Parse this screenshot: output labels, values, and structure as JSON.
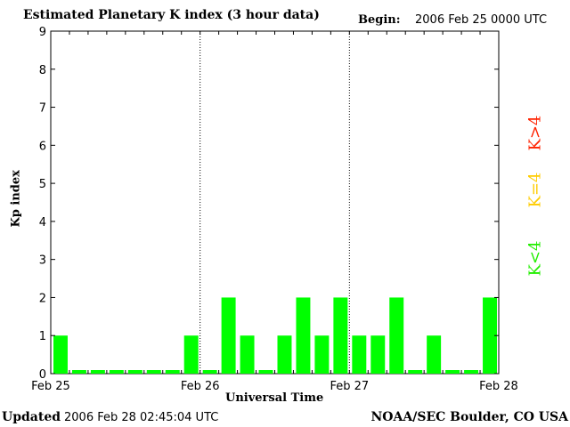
{
  "header": {
    "title": "Estimated Planetary K index (3 hour data)",
    "begin_label": "Begin:",
    "begin_value": "2006 Feb 25 0000 UTC"
  },
  "footer": {
    "updated_label": "Updated",
    "updated_value": "2006 Feb 28 02:45:04 UTC",
    "credit": "NOAA/SEC Boulder, CO USA"
  },
  "legend": {
    "high": "K>4",
    "mid": "K=4",
    "low": "K<4"
  },
  "colors": {
    "low": "#00ff00",
    "mid": "#ffcc00",
    "high": "#ff2200"
  },
  "chart_data": {
    "type": "bar",
    "title": "Estimated Planetary K index (3 hour data)",
    "xlabel": "Universal Time",
    "ylabel": "Kp index",
    "ylim": [
      0,
      9
    ],
    "yticks": [
      0,
      1,
      2,
      3,
      4,
      5,
      6,
      7,
      8,
      9
    ],
    "xticks": [
      "Feb 25",
      "Feb 26",
      "Feb 27",
      "Feb 28"
    ],
    "values": [
      1,
      0,
      0,
      0,
      0,
      0,
      0,
      1,
      0,
      2,
      1,
      0,
      1,
      2,
      1,
      2,
      1,
      1,
      2,
      0,
      1,
      0,
      0,
      2
    ]
  }
}
